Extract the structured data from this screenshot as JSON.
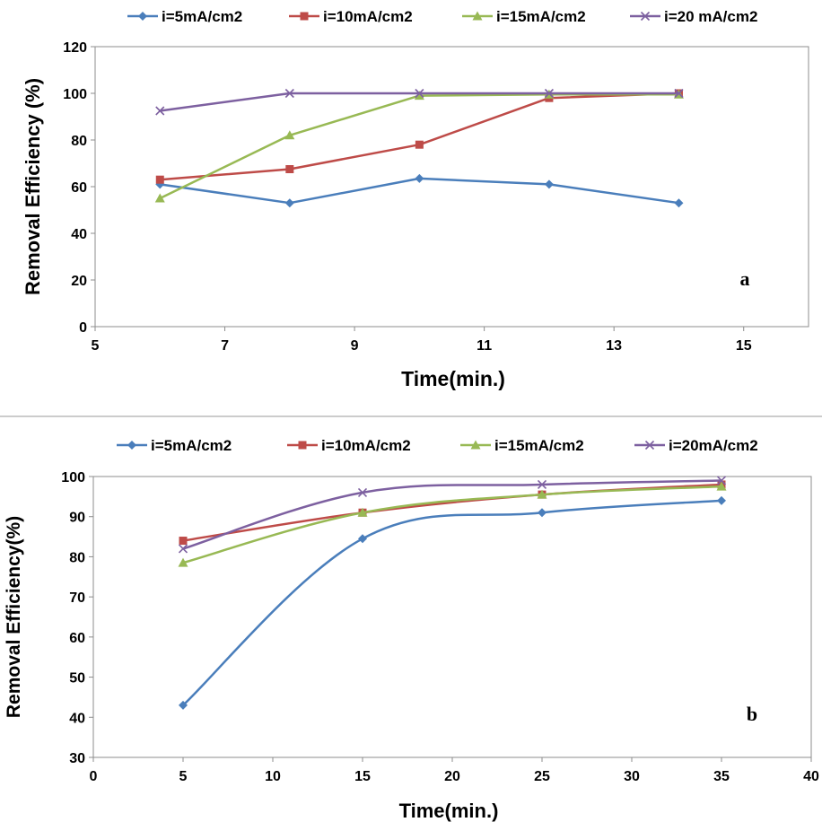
{
  "chart_data": [
    {
      "type": "line",
      "panel_label": "a",
      "xlabel": "Time(min.)",
      "ylabel": "Removal Efficiency (%)",
      "xlim": [
        5,
        16
      ],
      "ylim": [
        0,
        120
      ],
      "xticks": [
        5,
        7,
        9,
        11,
        13,
        15
      ],
      "yticks": [
        0,
        20,
        40,
        60,
        80,
        100,
        120
      ],
      "grid": false,
      "legend_position": "top",
      "smooth": false,
      "x": [
        6,
        8,
        10,
        12,
        14
      ],
      "series": [
        {
          "name": "i=5mA/cm2",
          "values": [
            61,
            53,
            63.5,
            61,
            53
          ],
          "color": "#4a7ebb",
          "marker": "diamond"
        },
        {
          "name": "i=10mA/cm2",
          "values": [
            63,
            67.5,
            78,
            98,
            100
          ],
          "color": "#be4b48",
          "marker": "square"
        },
        {
          "name": "i=15mA/cm2",
          "values": [
            55,
            82,
            99,
            99.5,
            99.5
          ],
          "color": "#98b954",
          "marker": "triangle"
        },
        {
          "name": "i=20 mA/cm2",
          "values": [
            92.5,
            100,
            100,
            100,
            100
          ],
          "color": "#7d60a0",
          "marker": "x"
        }
      ]
    },
    {
      "type": "line",
      "panel_label": "b",
      "xlabel": "Time(min.)",
      "ylabel": "Removal Efficiency(%)",
      "xlim": [
        0,
        40
      ],
      "ylim": [
        30,
        100
      ],
      "xticks": [
        0,
        5,
        10,
        15,
        20,
        25,
        30,
        35,
        40
      ],
      "yticks": [
        30,
        40,
        50,
        60,
        70,
        80,
        90,
        100
      ],
      "grid": false,
      "legend_position": "top",
      "smooth": true,
      "x": [
        5,
        15,
        25,
        35
      ],
      "series": [
        {
          "name": "i=5mA/cm2",
          "values": [
            43,
            84.5,
            91,
            94
          ],
          "color": "#4a7ebb",
          "marker": "diamond"
        },
        {
          "name": "i=10mA/cm2",
          "values": [
            84,
            91,
            95.5,
            98
          ],
          "color": "#be4b48",
          "marker": "square"
        },
        {
          "name": "i=15mA/cm2",
          "values": [
            78.5,
            91,
            95.5,
            97.5
          ],
          "color": "#98b954",
          "marker": "triangle"
        },
        {
          "name": "i=20mA/cm2",
          "values": [
            82,
            96,
            98,
            99
          ],
          "color": "#7d60a0",
          "marker": "x"
        }
      ]
    }
  ]
}
